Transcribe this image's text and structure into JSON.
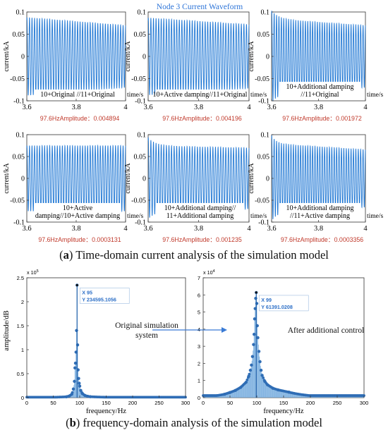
{
  "figure_title": "Node 3 Current Waveform",
  "colors": {
    "wave": "#1f77d4",
    "amp_text": "#c0392b",
    "title": "#2e75d8",
    "bar": "#6fa8dc",
    "stem": "#1f5fa8",
    "marker": "#2f6db5",
    "datatip": "#2c6fc7",
    "arrow": "#3a7bd5"
  },
  "captions": {
    "a_label": "a",
    "a_text": "Time-domain current analysis of the simulation model",
    "b_label": "b",
    "b_text": "frequency-domain analysis of the simulation model"
  },
  "annotations": {
    "left_text": "Original simulation system",
    "left_line1": "Original simulation",
    "left_line2": "system",
    "right_text": "After additional control"
  },
  "chart_data": [
    {
      "type": "line",
      "id": "a1",
      "ylabel": "current/kA",
      "xlabel": "time/s",
      "xlim": [
        3.6,
        4
      ],
      "ylim": [
        -0.1,
        0.1
      ],
      "xticks": [
        3.6,
        3.8,
        4
      ],
      "yticks": [
        -0.1,
        -0.05,
        0,
        0.05,
        0.1
      ],
      "xtick_labels": [
        "3.6",
        "3.8",
        "4"
      ],
      "ytick_labels": [
        "-0.1",
        "-0.05",
        "0",
        "0.05",
        "0.1"
      ],
      "freq_hz": 97.6,
      "amp_start": 0.088,
      "amp_end": 0.07,
      "decay": 0.3,
      "initial_spikes": 0,
      "label_lines": [
        "10+Original //11+Original"
      ],
      "amplitude_text": "97.6HzAmplitude：0.004894"
    },
    {
      "type": "line",
      "id": "a2",
      "ylabel": "current/kA",
      "xlabel": "time/s",
      "xlim": [
        3.6,
        4
      ],
      "ylim": [
        -0.1,
        0.1
      ],
      "xticks": [
        3.6,
        3.8,
        4
      ],
      "yticks": [
        -0.1,
        -0.05,
        0,
        0.05,
        0.1
      ],
      "xtick_labels": [
        "3.6",
        "3.8",
        "4"
      ],
      "ytick_labels": [
        "-0.1",
        "-0.05",
        "0",
        "0.05",
        "0.1"
      ],
      "freq_hz": 97.6,
      "amp_start": 0.087,
      "amp_end": 0.072,
      "decay": 0.3,
      "initial_spikes": 0,
      "label_lines": [
        "10+Active damping//11+Original"
      ],
      "amplitude_text": "97.6HzAmplitude：0.004196"
    },
    {
      "type": "line",
      "id": "a3",
      "ylabel": "current/kA",
      "xlabel": "time/s",
      "xlim": [
        3.6,
        4
      ],
      "ylim": [
        -0.1,
        0.1
      ],
      "xticks": [
        3.6,
        3.8,
        4
      ],
      "yticks": [
        -0.1,
        -0.05,
        0,
        0.05,
        0.1
      ],
      "xtick_labels": [
        "3.6",
        "3.8",
        "4"
      ],
      "ytick_labels": [
        "-0.1",
        "-0.05",
        "0",
        "0.05",
        "0.1"
      ],
      "freq_hz": 97.6,
      "amp_start": 0.085,
      "amp_end": 0.07,
      "decay": 0.3,
      "initial_spikes": 3,
      "label_lines": [
        "10+Additional damping",
        "//11+Original"
      ],
      "amplitude_text": "97.6HzAmplitude：0.001972"
    },
    {
      "type": "line",
      "id": "a4",
      "ylabel": "current/kA",
      "xlabel": "time/s",
      "xlim": [
        3.6,
        4
      ],
      "ylim": [
        -0.1,
        0.1
      ],
      "xticks": [
        3.6,
        3.8,
        4
      ],
      "yticks": [
        -0.1,
        -0.05,
        0,
        0.05,
        0.1
      ],
      "xtick_labels": [
        "3.6",
        "3.8",
        "4"
      ],
      "ytick_labels": [
        "-0.1",
        "-0.05",
        "0",
        "0.05",
        "0.1"
      ],
      "freq_hz": 97.6,
      "amp_start": 0.075,
      "amp_end": 0.075,
      "decay": 0,
      "initial_spikes": 0,
      "label_lines": [
        "10+Active",
        "damping//10+Active damping"
      ],
      "amplitude_text": "97.6HzAmplitude：0.0003131"
    },
    {
      "type": "line",
      "id": "a5",
      "ylabel": "current/kA",
      "xlabel": "time/s",
      "xlim": [
        3.6,
        4
      ],
      "ylim": [
        -0.1,
        0.1
      ],
      "xticks": [
        3.6,
        3.8,
        4
      ],
      "yticks": [
        -0.1,
        -0.05,
        0,
        0.05,
        0.1
      ],
      "xtick_labels": [
        "3.6",
        "3.8",
        "4"
      ],
      "ytick_labels": [
        "-0.1",
        "-0.05",
        "0",
        "0.05",
        "0.1"
      ],
      "freq_hz": 97.6,
      "amp_start": 0.075,
      "amp_end": 0.07,
      "decay": 0.3,
      "initial_spikes": 3,
      "label_lines": [
        "10+Additional damping//",
        "11+Additional damping"
      ],
      "amplitude_text": "97.6HzAmplitude：0.001235"
    },
    {
      "type": "line",
      "id": "a6",
      "ylabel": "current/kA",
      "xlabel": "time/s",
      "xlim": [
        3.6,
        4
      ],
      "ylim": [
        -0.1,
        0.1
      ],
      "xticks": [
        3.6,
        3.8,
        4
      ],
      "yticks": [
        -0.1,
        -0.05,
        0,
        0.05,
        0.1
      ],
      "xtick_labels": [
        "3.6",
        "3.8",
        "4"
      ],
      "ytick_labels": [
        "-0.1",
        "-0.05",
        "0",
        "0.05",
        "0.1"
      ],
      "freq_hz": 97.6,
      "amp_start": 0.08,
      "amp_end": 0.066,
      "decay": 0.35,
      "initial_spikes": 2,
      "label_lines": [
        "10+Additional damping",
        "//11+Active damping"
      ],
      "amplitude_text": "97.6HzAmplitude：0.0003356"
    },
    {
      "type": "bar",
      "id": "b1",
      "ylabel": "amplitude/dB",
      "xlabel": "frequency/Hz",
      "xlim": [
        0,
        300
      ],
      "ylim": [
        0,
        250000
      ],
      "xticks": [
        0,
        50,
        100,
        150,
        200,
        250,
        300
      ],
      "xtick_labels": [
        "0",
        "50",
        "100",
        "150",
        "200",
        "250",
        "300"
      ],
      "yticks": [
        0,
        50000,
        100000,
        150000,
        200000,
        250000
      ],
      "ytick_labels": [
        "0",
        "0.5",
        "1",
        "1.5",
        "2",
        "2.5"
      ],
      "exponent_text": "x 10",
      "exponent_power": "5",
      "peak": {
        "x": 95,
        "y": 234595.1056
      },
      "peak_x_text": "X 95",
      "peak_y_text": "Y 234595.1056",
      "spectrum": [
        {
          "x": 75,
          "y": 1800
        },
        {
          "x": 80,
          "y": 3200
        },
        {
          "x": 85,
          "y": 7000
        },
        {
          "x": 88,
          "y": 18000
        },
        {
          "x": 90,
          "y": 34000
        },
        {
          "x": 91,
          "y": 62000
        },
        {
          "x": 92,
          "y": 72000
        },
        {
          "x": 93,
          "y": 95000
        },
        {
          "x": 94,
          "y": 140000
        },
        {
          "x": 95,
          "y": 234595.1056
        },
        {
          "x": 96,
          "y": 110000
        },
        {
          "x": 97,
          "y": 58000
        },
        {
          "x": 98,
          "y": 40000
        },
        {
          "x": 99,
          "y": 30000
        },
        {
          "x": 100,
          "y": 24000
        },
        {
          "x": 102,
          "y": 15000
        },
        {
          "x": 105,
          "y": 8500
        },
        {
          "x": 110,
          "y": 4500
        },
        {
          "x": 115,
          "y": 2800
        },
        {
          "x": 120,
          "y": 1900
        }
      ],
      "baseline_amp": 900
    },
    {
      "type": "bar",
      "id": "b2",
      "ylabel": "",
      "xlabel": "frequency/Hz",
      "xlim": [
        0,
        300
      ],
      "ylim": [
        0,
        70000
      ],
      "xticks": [
        0,
        50,
        100,
        150,
        200,
        250,
        300
      ],
      "xtick_labels": [
        "0",
        "50",
        "100",
        "150",
        "200",
        "250",
        "300"
      ],
      "yticks": [
        0,
        10000,
        20000,
        30000,
        40000,
        50000,
        60000,
        70000
      ],
      "ytick_labels": [
        "0",
        "1",
        "2",
        "3",
        "4",
        "5",
        "6",
        "7"
      ],
      "exponent_text": "x 10",
      "exponent_power": "4",
      "peak": {
        "x": 99,
        "y": 61391.0208
      },
      "peak_x_text": "X 99",
      "peak_y_text": "Y 61391.0208",
      "spectrum": [
        {
          "x": 40,
          "y": 2000
        },
        {
          "x": 50,
          "y": 3000
        },
        {
          "x": 60,
          "y": 4200
        },
        {
          "x": 70,
          "y": 6000
        },
        {
          "x": 80,
          "y": 9000
        },
        {
          "x": 85,
          "y": 12500
        },
        {
          "x": 88,
          "y": 16000
        },
        {
          "x": 90,
          "y": 19000
        },
        {
          "x": 92,
          "y": 24000
        },
        {
          "x": 94,
          "y": 31000
        },
        {
          "x": 95,
          "y": 37000
        },
        {
          "x": 96,
          "y": 46000
        },
        {
          "x": 97,
          "y": 52000
        },
        {
          "x": 98,
          "y": 58000
        },
        {
          "x": 99,
          "y": 61391.0208
        },
        {
          "x": 100,
          "y": 55000
        },
        {
          "x": 101,
          "y": 42000
        },
        {
          "x": 102,
          "y": 35000
        },
        {
          "x": 104,
          "y": 27000
        },
        {
          "x": 106,
          "y": 21000
        },
        {
          "x": 108,
          "y": 16000
        },
        {
          "x": 110,
          "y": 13000
        },
        {
          "x": 115,
          "y": 9500
        },
        {
          "x": 120,
          "y": 7500
        },
        {
          "x": 130,
          "y": 5500
        },
        {
          "x": 140,
          "y": 4500
        },
        {
          "x": 160,
          "y": 3200
        }
      ],
      "baseline_amp": 1200
    }
  ]
}
